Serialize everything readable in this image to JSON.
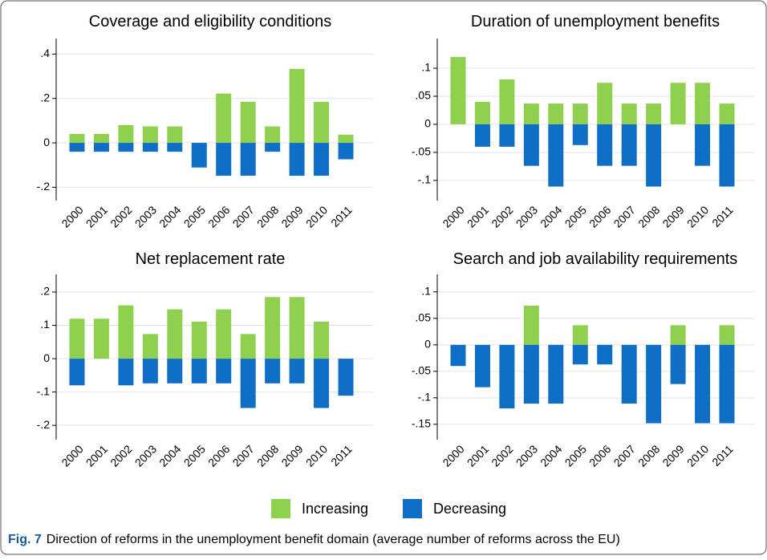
{
  "chart_data": [
    {
      "type": "bar",
      "title": "Coverage and eligibility conditions",
      "categories": [
        "2000",
        "2001",
        "2002",
        "2003",
        "2004",
        "2005",
        "2006",
        "2007",
        "2008",
        "2009",
        "2010",
        "2011"
      ],
      "series": [
        {
          "color": "#8fd14f",
          "values": [
            0.04,
            0.04,
            0.08,
            0.074,
            0.074,
            0,
            0.222,
            0.185,
            0.074,
            0.333,
            0.185,
            0.037
          ]
        },
        {
          "color": "#0f6fc6",
          "values": [
            -0.04,
            -0.04,
            -0.04,
            -0.04,
            -0.04,
            -0.111,
            -0.148,
            -0.148,
            -0.04,
            -0.148,
            -0.148,
            -0.074
          ]
        }
      ],
      "ylim": [
        -0.26,
        0.47
      ],
      "yticks": [
        {
          "value": -0.2,
          "label": "-.2"
        },
        0,
        {
          "value": 0.2,
          "label": ".2"
        },
        {
          "value": 0.4,
          "label": ".4"
        }
      ],
      "grid": true
    },
    {
      "type": "bar",
      "title": "Duration of unemployment benefits",
      "categories": [
        "2000",
        "2001",
        "2002",
        "2003",
        "2004",
        "2005",
        "2006",
        "2007",
        "2008",
        "2009",
        "2010",
        "2011"
      ],
      "series": [
        {
          "color": "#8fd14f",
          "values": [
            0.12,
            0.04,
            0.08,
            0.037,
            0.037,
            0.037,
            0.074,
            0.037,
            0.037,
            0.074,
            0.074,
            0.037
          ]
        },
        {
          "color": "#0f6fc6",
          "values": [
            0,
            -0.04,
            -0.04,
            -0.074,
            -0.111,
            -0.037,
            -0.074,
            -0.074,
            -0.111,
            0,
            -0.074,
            -0.111
          ]
        }
      ],
      "ylim": [
        -0.136,
        0.153
      ],
      "yticks": [
        {
          "value": -0.1,
          "label": "-.1"
        },
        {
          "value": -0.05,
          "label": "-.05"
        },
        0,
        {
          "value": 0.05,
          "label": ".05"
        },
        {
          "value": 0.1,
          "label": ".1"
        }
      ],
      "grid": true
    },
    {
      "type": "bar",
      "title": "Net replacement rate",
      "categories": [
        "2000",
        "2001",
        "2002",
        "2003",
        "2004",
        "2005",
        "2006",
        "2007",
        "2008",
        "2009",
        "2010",
        "2011"
      ],
      "series": [
        {
          "color": "#8fd14f",
          "values": [
            0.12,
            0.12,
            0.16,
            0.074,
            0.148,
            0.111,
            0.148,
            0.074,
            0.185,
            0.185,
            0.111,
            0
          ]
        },
        {
          "color": "#0f6fc6",
          "values": [
            -0.08,
            0,
            -0.08,
            -0.074,
            -0.074,
            -0.074,
            -0.074,
            -0.148,
            -0.074,
            -0.074,
            -0.148,
            -0.111
          ]
        }
      ],
      "ylim": [
        -0.243,
        0.253
      ],
      "yticks": [
        {
          "value": -0.2,
          "label": "-.2"
        },
        {
          "value": -0.1,
          "label": "-.1"
        },
        0,
        {
          "value": 0.1,
          "label": ".1"
        },
        {
          "value": 0.2,
          "label": ".2"
        }
      ],
      "grid": true
    },
    {
      "type": "bar",
      "title": "Search and job availability requirements",
      "categories": [
        "2000",
        "2001",
        "2002",
        "2003",
        "2004",
        "2005",
        "2006",
        "2007",
        "2008",
        "2009",
        "2010",
        "2011"
      ],
      "series": [
        {
          "color": "#8fd14f",
          "values": [
            0,
            0,
            0,
            0.074,
            0,
            0.037,
            0,
            0,
            0,
            0.037,
            0,
            0.037
          ]
        },
        {
          "color": "#0f6fc6",
          "values": [
            -0.04,
            -0.08,
            -0.12,
            -0.111,
            -0.111,
            -0.037,
            -0.037,
            -0.111,
            -0.148,
            -0.074,
            -0.148,
            -0.148
          ]
        }
      ],
      "ylim": [
        -0.179,
        0.133
      ],
      "yticks": [
        {
          "value": -0.15,
          "label": "-.15"
        },
        {
          "value": -0.1,
          "label": "-.1"
        },
        {
          "value": -0.05,
          "label": "-.05"
        },
        0,
        {
          "value": 0.05,
          "label": ".05"
        },
        {
          "value": 0.1,
          "label": ".1"
        }
      ],
      "grid": true
    }
  ],
  "legend": [
    {
      "name": "Increasing",
      "color": "#8fd14f"
    },
    {
      "name": "Decreasing",
      "color": "#0f6fc6"
    }
  ],
  "caption": {
    "label": "Fig. 7",
    "text": "Direction of reforms in the unemployment benefit domain (average number of reforms across the EU)"
  }
}
